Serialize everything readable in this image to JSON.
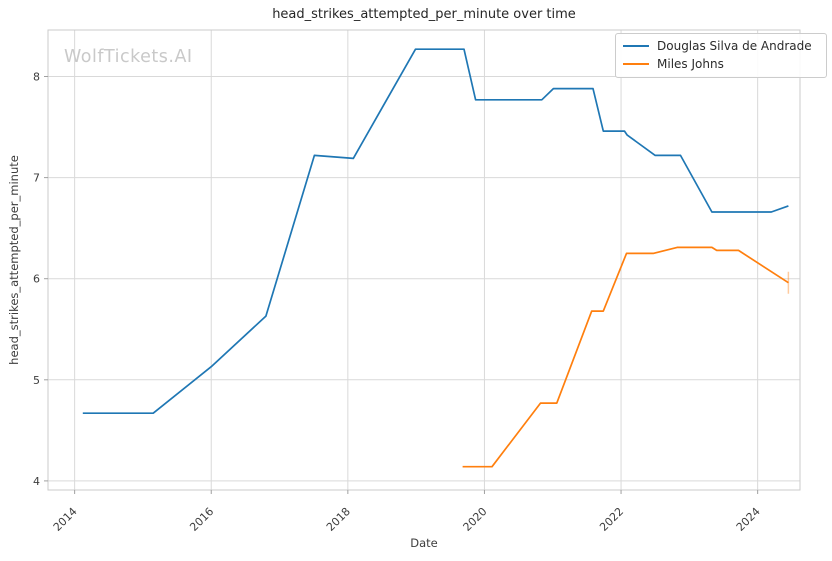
{
  "watermark": "WolfTickets.AI",
  "chart_data": {
    "type": "line",
    "title": "head_strikes_attempted_per_minute over time",
    "xlabel": "Date",
    "ylabel": "head_strikes_attempted_per_minute",
    "xlim": [
      2013.61,
      2024.62
    ],
    "ylim": [
      3.91,
      8.46
    ],
    "x_ticks": [
      2014,
      2016,
      2018,
      2020,
      2022,
      2024
    ],
    "y_ticks": [
      4,
      5,
      6,
      7,
      8
    ],
    "grid": true,
    "legend_position": "top-right",
    "colors": {
      "grid": "#d9d9d9",
      "spine": "#cbcbcb",
      "tick": "#a0a0a0",
      "tick_label": "#3d3d3d"
    },
    "series": [
      {
        "name": "Douglas Silva de Andrade",
        "color": "#1f77b4",
        "end_tick": false,
        "x": [
          2014.12,
          2015.15,
          2016.0,
          2016.8,
          2017.51,
          2018.08,
          2018.99,
          2019.7,
          2019.87,
          2020.84,
          2021.01,
          2021.59,
          2021.74,
          2022.05,
          2022.09,
          2022.5,
          2022.87,
          2023.33,
          2024.2,
          2024.45
        ],
        "y": [
          4.67,
          4.67,
          5.13,
          5.63,
          7.22,
          7.19,
          8.27,
          8.27,
          7.77,
          7.77,
          7.88,
          7.88,
          7.46,
          7.46,
          7.42,
          7.22,
          7.22,
          6.66,
          6.66,
          6.72
        ]
      },
      {
        "name": "Miles Johns",
        "color": "#ff7f0e",
        "end_tick": true,
        "x": [
          2019.68,
          2020.11,
          2020.82,
          2021.06,
          2021.57,
          2021.74,
          2022.08,
          2022.47,
          2022.82,
          2023.33,
          2023.4,
          2023.72,
          2024.45
        ],
        "y": [
          4.14,
          4.14,
          4.77,
          4.77,
          5.68,
          5.68,
          6.25,
          6.25,
          6.31,
          6.31,
          6.28,
          6.28,
          5.96
        ]
      }
    ]
  }
}
